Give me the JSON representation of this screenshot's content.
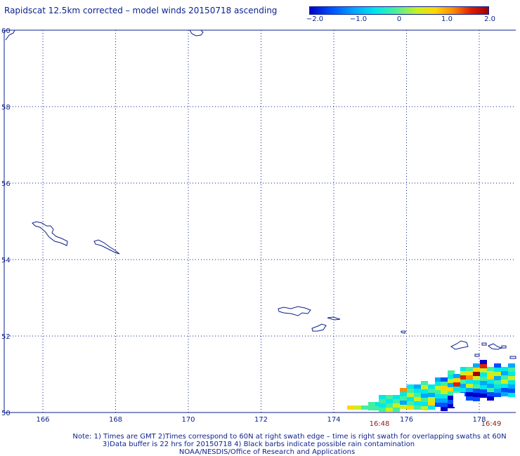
{
  "title": "Rapidscat 12.5km corrected – model winds 20150718 ascending",
  "colorbar": {
    "ticks": [
      "−2.0",
      "−1.0",
      "0",
      "1.0",
      "2.0"
    ],
    "range": [
      -2.0,
      2.0
    ],
    "colors": [
      "#0000c8",
      "#0050ff",
      "#00a8ff",
      "#00e8e8",
      "#40f0a0",
      "#c8f020",
      "#ffd800",
      "#ff8c00",
      "#e02000",
      "#a00000"
    ]
  },
  "map": {
    "lon_range": [
      165,
      179.4
    ],
    "lat_range": [
      50,
      60
    ],
    "lon_ticks": [
      "166",
      "168",
      "170",
      "172",
      "174",
      "176",
      "178"
    ],
    "lat_ticks": [
      "60",
      "58",
      "56",
      "54",
      "52",
      "50"
    ],
    "gridlines": "dotted",
    "coastline_color": "#0b1f8c",
    "islands": [
      "Bering Island",
      "Medny Island",
      "Attu Island",
      "Agattu Island",
      "Kiska Island",
      "Rat Islands"
    ]
  },
  "swath_times": [
    "16:48",
    "16:49"
  ],
  "notes": {
    "line1": "Note: 1) Times are GMT 2)Times correspond to 60N at right swath edge – time is right swath for overlapping swaths at 60N",
    "line2": "3)Data buffer is 22 hrs for 20150718 4) Black barbs indicate possible rain contamination",
    "line3": "NOAA/NESDIS/Office of Research and Applications"
  }
}
